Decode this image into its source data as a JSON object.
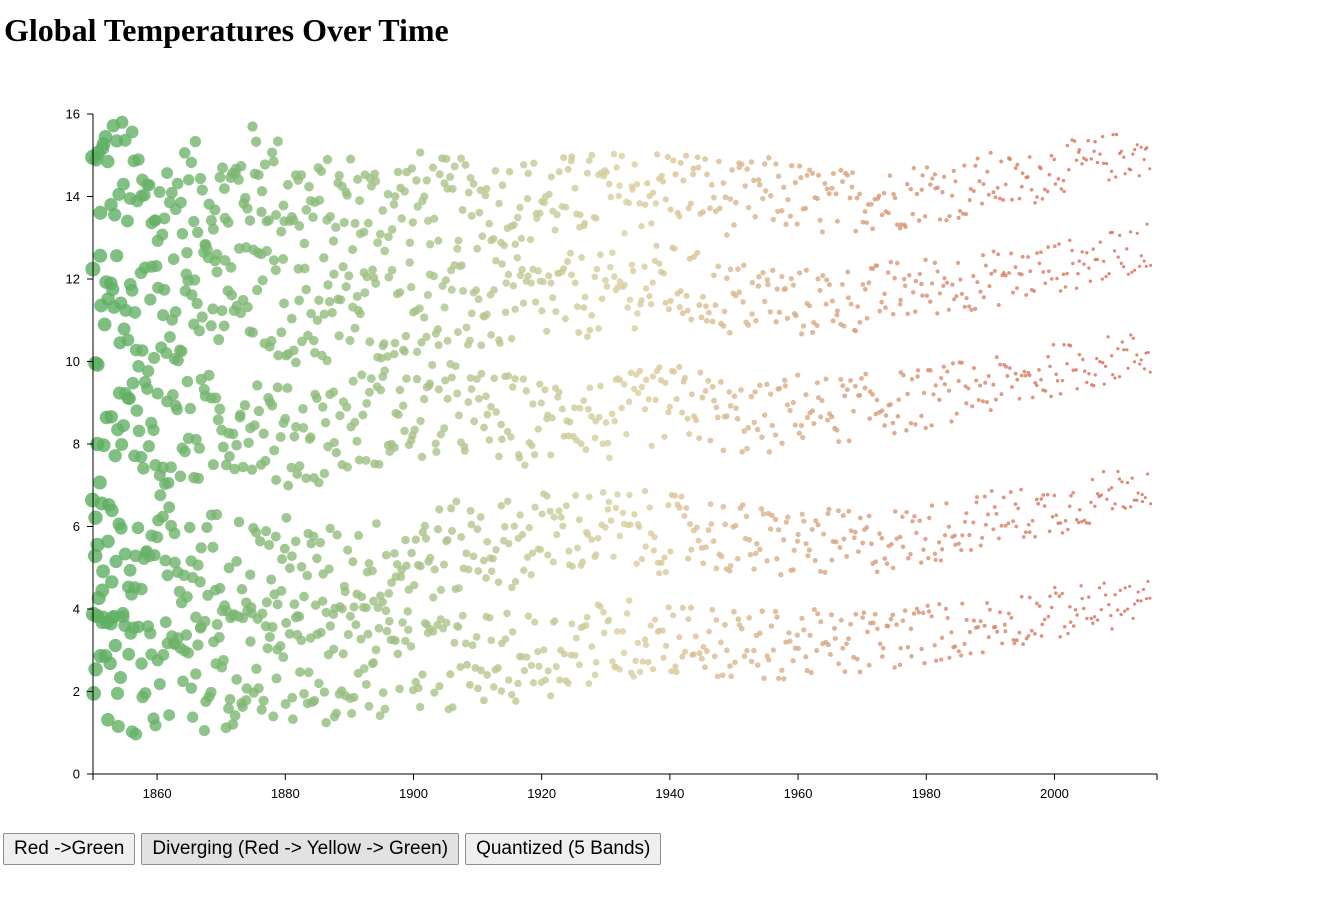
{
  "title": "Global Temperatures Over Time",
  "buttons": [
    {
      "label": "Red ->Green",
      "active": false
    },
    {
      "label": "Diverging (Red -> Yellow -> Green)",
      "active": true
    },
    {
      "label": "Quantized (5 Bands)",
      "active": false
    }
  ],
  "colors": {
    "low": "#5aae61",
    "mid": "#d9cfa0",
    "high": "#d6604d"
  },
  "chart_data": {
    "type": "scatter",
    "title": "",
    "xlabel": "",
    "ylabel": "",
    "xlim": [
      1850,
      2016
    ],
    "ylim": [
      0,
      16
    ],
    "x_ticks": [
      1860,
      1880,
      1900,
      1920,
      1940,
      1960,
      1980,
      2000
    ],
    "y_ticks": [
      0,
      2,
      4,
      6,
      8,
      10,
      12,
      14,
      16
    ],
    "x_tick_labels": [
      "1860",
      "1880",
      "1900",
      "1920",
      "1940",
      "1960",
      "1980",
      "2000"
    ],
    "y_tick_labels": [
      "0",
      "2",
      "4",
      "6",
      "8",
      "10",
      "12",
      "14",
      "16"
    ],
    "grid": false,
    "legend": "none",
    "encoding": "one point per month; point color and size encode year (green & large = earliest, red & small = latest)",
    "series": [
      {
        "values": [
          [
            1850,
            14.5
          ],
          [
            1852,
            14.6
          ],
          [
            1854,
            14.7
          ],
          [
            1858,
            13.8
          ],
          [
            1860,
            13.6
          ],
          [
            1865,
            14.0
          ],
          [
            1870,
            13.9
          ],
          [
            1876,
            14.6
          ],
          [
            1880,
            14.1
          ],
          [
            1885,
            13.6
          ],
          [
            1890,
            13.9
          ],
          [
            1895,
            13.7
          ],
          [
            1900,
            14.0
          ],
          [
            1905,
            13.8
          ],
          [
            1910,
            13.8
          ],
          [
            1915,
            13.9
          ],
          [
            1920,
            13.9
          ],
          [
            1925,
            14.0
          ],
          [
            1930,
            14.1
          ],
          [
            1935,
            14.1
          ],
          [
            1940,
            14.3
          ],
          [
            1945,
            14.2
          ],
          [
            1950,
            13.9
          ],
          [
            1955,
            14.1
          ],
          [
            1960,
            14.0
          ],
          [
            1965,
            13.8
          ],
          [
            1970,
            14.0
          ],
          [
            1975,
            13.9
          ],
          [
            1980,
            14.2
          ],
          [
            1985,
            14.1
          ],
          [
            1990,
            14.4
          ],
          [
            1995,
            14.3
          ],
          [
            2000,
            14.7
          ],
          [
            2005,
            14.8
          ],
          [
            2010,
            15.0
          ],
          [
            2015,
            15.0
          ]
        ]
      },
      {
        "values": [
          [
            1850,
            11.3
          ],
          [
            1853,
            11.5
          ],
          [
            1856,
            10.9
          ],
          [
            1860,
            11.2
          ],
          [
            1865,
            11.5
          ],
          [
            1870,
            11.4
          ],
          [
            1875,
            11.6
          ],
          [
            1880,
            11.3
          ],
          [
            1885,
            11.0
          ],
          [
            1890,
            11.3
          ],
          [
            1895,
            11.2
          ],
          [
            1900,
            11.4
          ],
          [
            1905,
            11.2
          ],
          [
            1910,
            11.3
          ],
          [
            1915,
            11.4
          ],
          [
            1920,
            11.5
          ],
          [
            1925,
            11.6
          ],
          [
            1930,
            11.6
          ],
          [
            1935,
            11.8
          ],
          [
            1940,
            11.9
          ],
          [
            1945,
            11.7
          ],
          [
            1950,
            11.5
          ],
          [
            1955,
            11.6
          ],
          [
            1960,
            11.4
          ],
          [
            1965,
            11.5
          ],
          [
            1970,
            11.5
          ],
          [
            1975,
            11.7
          ],
          [
            1980,
            11.8
          ],
          [
            1985,
            11.9
          ],
          [
            1990,
            12.0
          ],
          [
            1995,
            12.1
          ],
          [
            2000,
            12.3
          ],
          [
            2005,
            12.4
          ],
          [
            2010,
            12.6
          ],
          [
            2015,
            12.8
          ]
        ]
      },
      {
        "values": [
          [
            1850,
            7.6
          ],
          [
            1852,
            7.5
          ],
          [
            1855,
            8.4
          ],
          [
            1858,
            8.8
          ],
          [
            1860,
            8.1
          ],
          [
            1865,
            8.2
          ],
          [
            1870,
            8.5
          ],
          [
            1875,
            8.7
          ],
          [
            1880,
            8.1
          ],
          [
            1885,
            8.3
          ],
          [
            1890,
            8.5
          ],
          [
            1895,
            8.7
          ],
          [
            1900,
            8.6
          ],
          [
            1905,
            8.9
          ],
          [
            1910,
            8.7
          ],
          [
            1915,
            8.6
          ],
          [
            1920,
            8.5
          ],
          [
            1925,
            8.9
          ],
          [
            1930,
            8.5
          ],
          [
            1935,
            8.8
          ],
          [
            1940,
            9.0
          ],
          [
            1945,
            8.9
          ],
          [
            1950,
            8.6
          ],
          [
            1955,
            8.6
          ],
          [
            1960,
            8.9
          ],
          [
            1965,
            8.8
          ],
          [
            1970,
            8.9
          ],
          [
            1975,
            9.0
          ],
          [
            1980,
            9.1
          ],
          [
            1985,
            9.3
          ],
          [
            1990,
            9.4
          ],
          [
            1995,
            9.5
          ],
          [
            2000,
            9.8
          ],
          [
            2005,
            9.9
          ],
          [
            2010,
            10.1
          ],
          [
            2015,
            10.2
          ]
        ]
      },
      {
        "values": [
          [
            1850,
            4.8
          ],
          [
            1853,
            4.6
          ],
          [
            1856,
            4.9
          ],
          [
            1860,
            5.5
          ],
          [
            1865,
            4.8
          ],
          [
            1870,
            5.2
          ],
          [
            1875,
            4.9
          ],
          [
            1880,
            5.0
          ],
          [
            1885,
            4.7
          ],
          [
            1890,
            4.9
          ],
          [
            1895,
            5.0
          ],
          [
            1900,
            5.3
          ],
          [
            1905,
            5.4
          ],
          [
            1910,
            5.6
          ],
          [
            1915,
            5.6
          ],
          [
            1920,
            5.8
          ],
          [
            1925,
            5.9
          ],
          [
            1930,
            5.9
          ],
          [
            1935,
            5.9
          ],
          [
            1940,
            5.8
          ],
          [
            1945,
            5.9
          ],
          [
            1950,
            5.7
          ],
          [
            1955,
            5.6
          ],
          [
            1960,
            5.6
          ],
          [
            1965,
            5.6
          ],
          [
            1970,
            5.6
          ],
          [
            1975,
            5.7
          ],
          [
            1980,
            5.8
          ],
          [
            1985,
            6.0
          ],
          [
            1990,
            6.2
          ],
          [
            1995,
            6.3
          ],
          [
            2000,
            6.4
          ],
          [
            2005,
            6.6
          ],
          [
            2010,
            6.9
          ],
          [
            2015,
            7.1
          ]
        ]
      },
      {
        "values": [
          [
            1850,
            2.8
          ],
          [
            1852,
            2.3
          ],
          [
            1855,
            2.6
          ],
          [
            1858,
            2.1
          ],
          [
            1860,
            2.5
          ],
          [
            1863,
            2.9
          ],
          [
            1866,
            2.4
          ],
          [
            1870,
            2.4
          ],
          [
            1875,
            2.7
          ],
          [
            1880,
            2.6
          ],
          [
            1885,
            2.4
          ],
          [
            1890,
            2.5
          ],
          [
            1895,
            2.6
          ],
          [
            1900,
            2.8
          ],
          [
            1905,
            2.7
          ],
          [
            1910,
            2.8
          ],
          [
            1915,
            2.8
          ],
          [
            1920,
            2.9
          ],
          [
            1925,
            3.1
          ],
          [
            1930,
            3.2
          ],
          [
            1935,
            3.3
          ],
          [
            1940,
            3.4
          ],
          [
            1945,
            3.2
          ],
          [
            1950,
            3.1
          ],
          [
            1955,
            3.1
          ],
          [
            1960,
            3.2
          ],
          [
            1965,
            3.1
          ],
          [
            1970,
            3.2
          ],
          [
            1975,
            3.3
          ],
          [
            1980,
            3.4
          ],
          [
            1985,
            3.5
          ],
          [
            1990,
            3.6
          ],
          [
            1995,
            3.8
          ],
          [
            2000,
            3.9
          ],
          [
            2005,
            4.0
          ],
          [
            2010,
            4.1
          ],
          [
            2015,
            4.2
          ]
        ]
      }
    ]
  }
}
